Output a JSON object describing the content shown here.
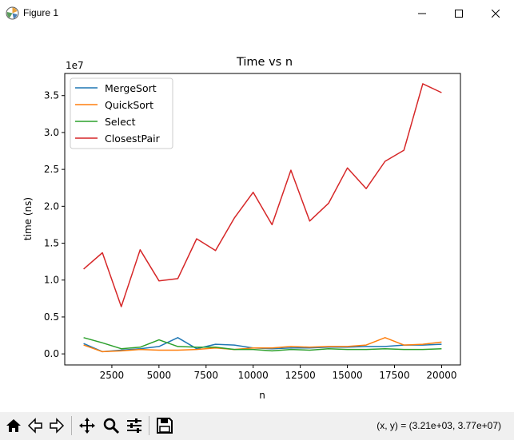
{
  "window": {
    "title": "Figure 1"
  },
  "toolbar": {
    "coords": "(x, y) = (3.21e+03, 3.77e+07)",
    "buttons": [
      "home-icon",
      "back-icon",
      "forward-icon",
      "pan-icon",
      "zoom-icon",
      "subplots-icon",
      "save-icon"
    ]
  },
  "chart_data": {
    "type": "line",
    "title": "Time vs n",
    "xlabel": "n",
    "ylabel": "time (ns)",
    "y_offset_label": "1e7",
    "xlim": [
      0,
      21000
    ],
    "ylim": [
      -0.15,
      3.8
    ],
    "y_multiplier": 10000000,
    "xticks": [
      2500,
      5000,
      7500,
      10000,
      12500,
      15000,
      17500,
      20000
    ],
    "xtick_labels": [
      "2500",
      "5000",
      "7500",
      "10000",
      "12500",
      "15000",
      "17500",
      "20000"
    ],
    "yticks": [
      0.0,
      0.5,
      1.0,
      1.5,
      2.0,
      2.5,
      3.0,
      3.5
    ],
    "ytick_labels": [
      "0.0",
      "0.5",
      "1.0",
      "1.5",
      "2.0",
      "2.5",
      "3.0",
      "3.5"
    ],
    "legend_position": "top-left",
    "grid": false,
    "x": [
      1000,
      2000,
      3000,
      4000,
      5000,
      6000,
      7000,
      8000,
      9000,
      10000,
      11000,
      12000,
      13000,
      14000,
      15000,
      16000,
      17000,
      18000,
      19000,
      20000
    ],
    "series": [
      {
        "name": "MergeSort",
        "color": "#1f77b4",
        "values": [
          0.14,
          0.03,
          0.05,
          0.07,
          0.1,
          0.22,
          0.07,
          0.13,
          0.12,
          0.08,
          0.07,
          0.08,
          0.08,
          0.09,
          0.09,
          0.1,
          0.1,
          0.12,
          0.12,
          0.13
        ]
      },
      {
        "name": "QuickSort",
        "color": "#ff7f0e",
        "values": [
          0.12,
          0.03,
          0.04,
          0.06,
          0.05,
          0.05,
          0.06,
          0.08,
          0.06,
          0.08,
          0.08,
          0.1,
          0.09,
          0.1,
          0.1,
          0.12,
          0.22,
          0.12,
          0.13,
          0.16
        ]
      },
      {
        "name": "Select",
        "color": "#2ca02c",
        "values": [
          0.22,
          0.15,
          0.07,
          0.09,
          0.19,
          0.1,
          0.09,
          0.09,
          0.06,
          0.06,
          0.04,
          0.06,
          0.05,
          0.07,
          0.06,
          0.06,
          0.07,
          0.06,
          0.06,
          0.07
        ]
      },
      {
        "name": "ClosestPair",
        "color": "#d62728",
        "values": [
          1.15,
          1.37,
          0.64,
          1.41,
          0.99,
          1.02,
          1.56,
          1.4,
          1.84,
          2.19,
          1.75,
          2.49,
          1.8,
          2.04,
          2.52,
          2.24,
          2.61,
          2.76,
          3.66,
          3.54
        ]
      }
    ]
  }
}
